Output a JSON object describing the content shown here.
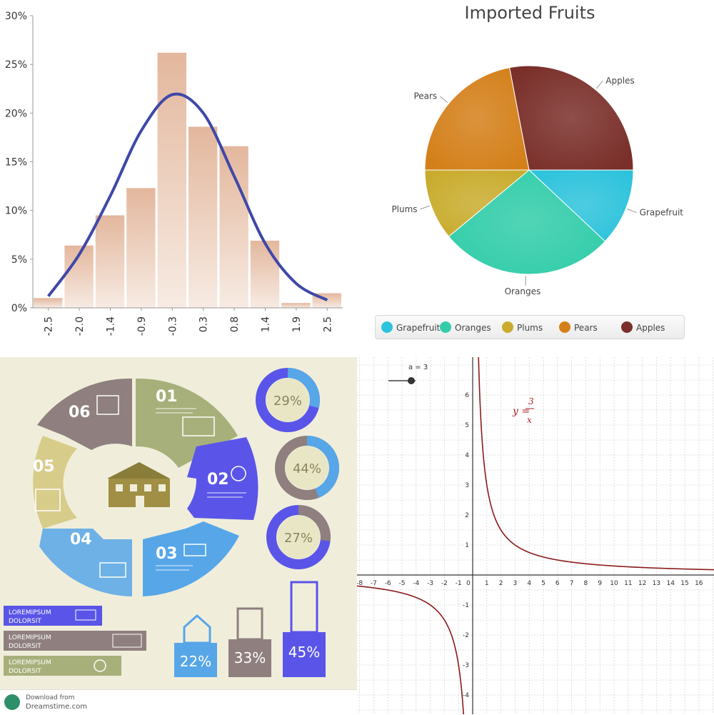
{
  "colors": {
    "hist_bar": "#e8c3ad",
    "hist_curve": "#3e48a8",
    "pie": [
      "#2ec3dc",
      "#33cdaa",
      "#c9ac2e",
      "#d4801a",
      "#7a2f2a"
    ],
    "func_curve": "#8b1a1a",
    "info_olive": "#a7b07a",
    "info_blue": "#5a55e8",
    "info_sky": "#56a6e8",
    "info_mauve": "#8f7f7f",
    "info_tan": "#d8cc8a"
  },
  "chart_data": [
    {
      "type": "bar",
      "categories": [
        "-2.5",
        "-2.0",
        "-1.4",
        "-0.9",
        "-0.3",
        "0.3",
        "0.8",
        "1.4",
        "1.9",
        "2.5"
      ],
      "values": [
        1,
        6.4,
        9.5,
        12.3,
        26.2,
        18.6,
        16.6,
        6.9,
        0.5,
        1.5
      ],
      "curve": [
        1.2,
        5.5,
        11.5,
        18.2,
        21.9,
        20.0,
        13.5,
        6.6,
        2.5,
        0.8
      ],
      "y_ticks": [
        "0%",
        "5%",
        "10%",
        "15%",
        "20%",
        "25%",
        "30%"
      ],
      "ylim": [
        0,
        30
      ],
      "title": "",
      "xlabel": "",
      "ylabel": ""
    },
    {
      "type": "pie",
      "title": "Imported Fruits",
      "slices": [
        {
          "label": "Grapefruit",
          "value": 12
        },
        {
          "label": "Oranges",
          "value": 27
        },
        {
          "label": "Plums",
          "value": 11
        },
        {
          "label": "Pears",
          "value": 22
        },
        {
          "label": "Apples",
          "value": 28
        }
      ]
    },
    {
      "type": "line",
      "title": "",
      "equation": "y = 3/x",
      "equation_prefix": "y =",
      "equation_num": "3",
      "equation_den": "x",
      "slider_label": "a = 3",
      "a": 3,
      "xlim": [
        -8,
        17
      ],
      "ylim": [
        -4,
        7
      ],
      "x_ticks": [
        "-8",
        "-7",
        "-6",
        "-5",
        "-4",
        "-3",
        "-2",
        "-1",
        "0",
        "1",
        "2",
        "3",
        "4",
        "5",
        "6",
        "7",
        "8",
        "9",
        "10",
        "11",
        "12",
        "13",
        "14",
        "15",
        "16"
      ],
      "y_ticks": [
        "-4",
        "-3",
        "-2",
        "-1",
        "1",
        "2",
        "3",
        "4",
        "5",
        "6"
      ]
    }
  ],
  "infographic": {
    "segments": [
      "01",
      "02",
      "03",
      "04",
      "05",
      "06"
    ],
    "donuts": [
      "29%",
      "44%",
      "27%"
    ],
    "donut_values": [
      29,
      44,
      27
    ],
    "buildings": [
      "22%",
      "33%",
      "45%"
    ],
    "banners": [
      {
        "line1": "LOREMIPSUM",
        "line2": "DOLORSIT"
      },
      {
        "line1": "LOREMIPSUM",
        "line2": "DOLORSIT"
      },
      {
        "line1": "LOREMIPSUM",
        "line2": "DOLORSIT"
      }
    ],
    "footer": {
      "line1": "Download from",
      "line2": "Dreamstime.com"
    }
  }
}
